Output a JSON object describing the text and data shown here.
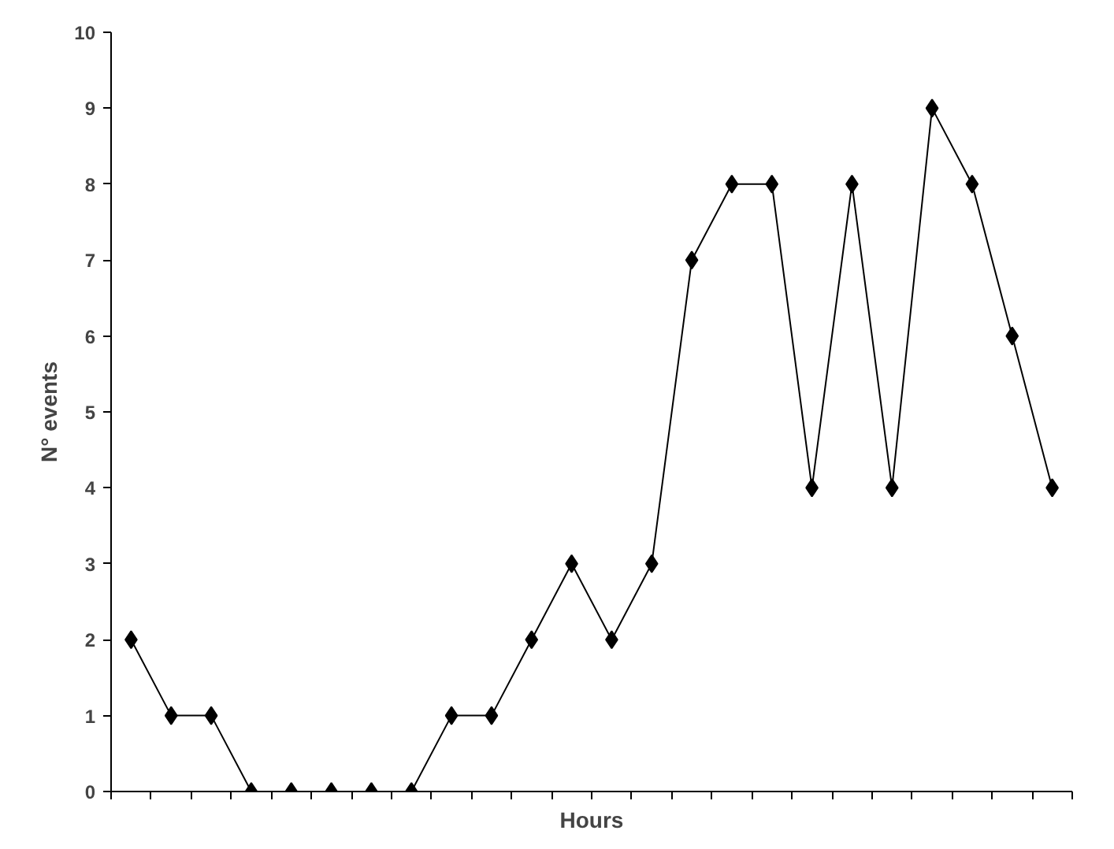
{
  "chart_data": {
    "type": "line",
    "xlabel": "Hours",
    "ylabel": "N° events",
    "categories": [
      null,
      null,
      null,
      null,
      null,
      null,
      null,
      null,
      null,
      null,
      null,
      null,
      null,
      null,
      null,
      null,
      null,
      null,
      null,
      null,
      null,
      null,
      null,
      null
    ],
    "series": [
      {
        "color": "#000000",
        "values": [
          2,
          1,
          1,
          0,
          0,
          0,
          0,
          0,
          1,
          1,
          2,
          3,
          2,
          3,
          7,
          8,
          8,
          4,
          8,
          4,
          9,
          8,
          6,
          4
        ]
      }
    ],
    "ylim": [
      0,
      10
    ],
    "yticks": [
      0,
      1,
      2,
      3,
      4,
      5,
      6,
      7,
      8,
      9,
      10
    ],
    "grid": false,
    "marker": "diamond",
    "line_style": "solid"
  }
}
